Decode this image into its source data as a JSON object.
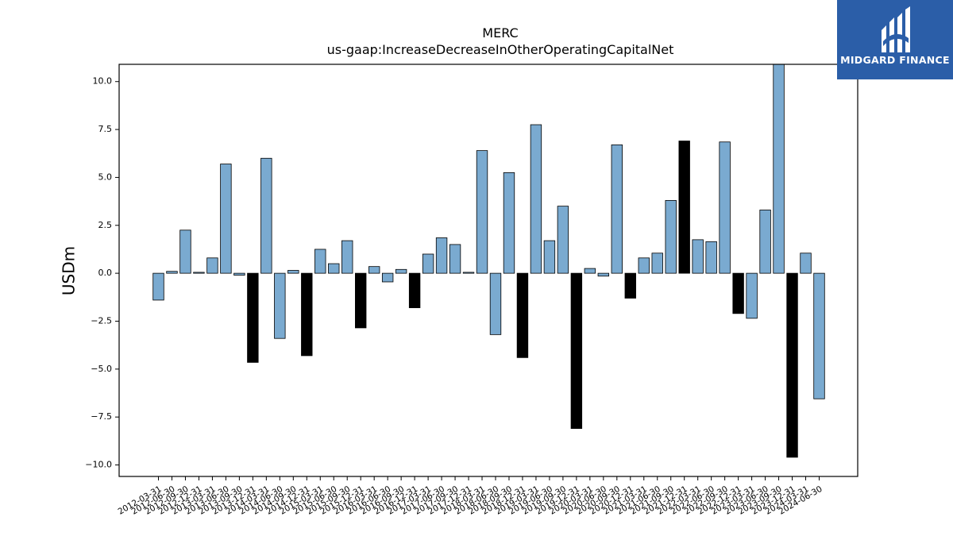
{
  "chart_data": {
    "type": "bar",
    "title": "MERC",
    "subtitle": "us-gaap:IncreaseDecreaseInOtherOperatingCapitalNet",
    "xlabel": "",
    "ylabel": "USDm",
    "ylim": [
      -10.6,
      10.9
    ],
    "yticks": [
      -10.0,
      -7.5,
      -5.0,
      -2.5,
      0.0,
      2.5,
      5.0,
      7.5,
      10.0
    ],
    "ytick_labels": [
      "−10.0",
      "−7.5",
      "−5.0",
      "−2.5",
      "0.0",
      "2.5",
      "5.0",
      "7.5",
      "10.0"
    ],
    "grid": false,
    "colors": {
      "quarter": "#7aaad0",
      "annual": "#000000",
      "edge": "#000000"
    },
    "categories": [
      "2012-03-31",
      "2012-06-30",
      "2012-09-30",
      "2012-12-31",
      "2013-03-31",
      "2013-06-30",
      "2013-09-30",
      "2013-12-31",
      "2014-03-31",
      "2014-06-30",
      "2014-09-30",
      "2014-12-31",
      "2015-03-31",
      "2015-06-30",
      "2015-09-30",
      "2015-12-31",
      "2016-03-31",
      "2016-06-30",
      "2016-09-30",
      "2016-12-31",
      "2017-03-31",
      "2017-06-30",
      "2017-09-30",
      "2017-12-31",
      "2018-03-31",
      "2018-06-30",
      "2018-09-30",
      "2018-12-31",
      "2019-03-31",
      "2019-06-30",
      "2019-09-30",
      "2019-12-31",
      "2020-03-31",
      "2020-06-30",
      "2020-09-30",
      "2020-12-31",
      "2021-03-31",
      "2021-06-30",
      "2021-09-30",
      "2021-12-31",
      "2022-03-31",
      "2022-06-30",
      "2022-09-30",
      "2022-12-31",
      "2023-03-31",
      "2023-06-30",
      "2023-09-30",
      "2023-12-31",
      "2024-03-31",
      "2024-06-30"
    ],
    "values": [
      -1.4,
      0.1,
      2.25,
      0.05,
      0.8,
      5.7,
      -0.1,
      -4.65,
      6.0,
      -3.4,
      0.15,
      -4.3,
      1.25,
      0.5,
      1.7,
      -2.85,
      0.35,
      -0.45,
      0.2,
      -1.8,
      1.0,
      1.85,
      1.5,
      0.05,
      6.4,
      -3.2,
      5.25,
      -4.4,
      7.75,
      1.7,
      3.5,
      -8.1,
      0.25,
      -0.15,
      6.7,
      -1.3,
      0.8,
      1.05,
      3.8,
      6.9,
      1.75,
      1.65,
      6.85,
      -2.1,
      -2.35,
      3.3,
      10.9,
      -9.6,
      1.05,
      -6.55
    ],
    "annual": [
      false,
      false,
      false,
      false,
      false,
      false,
      false,
      true,
      false,
      false,
      false,
      true,
      false,
      false,
      false,
      true,
      false,
      false,
      false,
      true,
      false,
      false,
      false,
      false,
      false,
      false,
      false,
      true,
      false,
      false,
      false,
      true,
      false,
      false,
      false,
      true,
      false,
      false,
      false,
      true,
      false,
      false,
      false,
      true,
      false,
      false,
      false,
      true,
      false,
      false
    ]
  },
  "logo": {
    "text": "MIDGARD FINANCE"
  }
}
